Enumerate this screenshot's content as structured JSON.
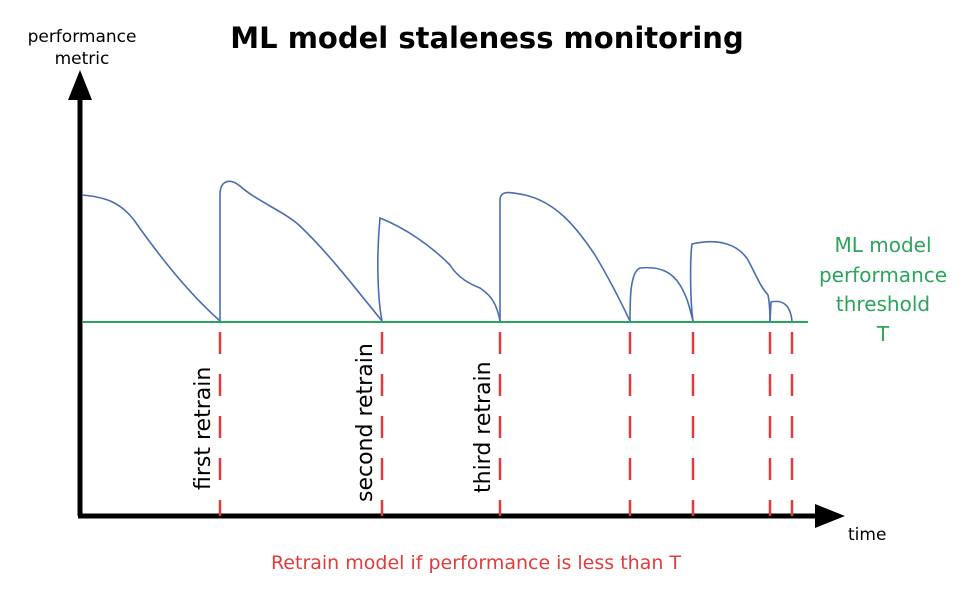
{
  "diagram": {
    "title": "ML model staleness monitoring",
    "y_axis_label_line1": "performance",
    "y_axis_label_line2": "metric",
    "x_axis_label": "time",
    "threshold_label_line1": "ML model",
    "threshold_label_line2": "performance",
    "threshold_label_line3": "threshold",
    "threshold_label_line4": "T",
    "retrain_labels": [
      "first retrain",
      "second retrain",
      "third retrain"
    ],
    "caption": "Retrain model if performance is less than T",
    "colors": {
      "axis": "#000000",
      "curve": "#4a6db0",
      "threshold": "#2aa55b",
      "retrain_marker": "#e23b3b",
      "caption": "#e23b3b",
      "threshold_label": "#2aa55b"
    }
  }
}
